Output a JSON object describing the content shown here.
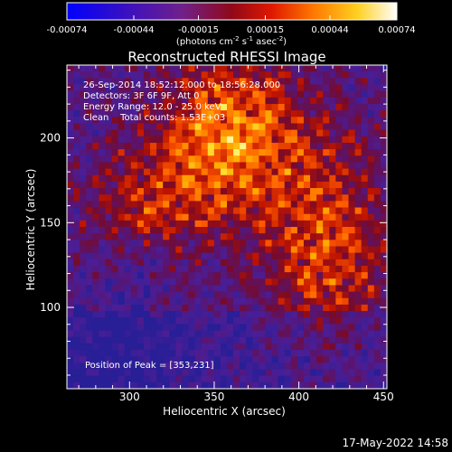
{
  "chart_data": {
    "type": "heatmap",
    "title": "Reconstructed RHESSI Image",
    "xlabel": "Heliocentric X (arcsec)",
    "ylabel": "Heliocentric Y (arcsec)",
    "xlim": [
      263,
      452
    ],
    "ylim": [
      52,
      243
    ],
    "x_ticks": [
      "300",
      "350",
      "400",
      "450"
    ],
    "x_tick_values": [
      300,
      350,
      400,
      450
    ],
    "y_ticks": [
      "100",
      "150",
      "200"
    ],
    "y_tick_values": [
      100,
      150,
      200
    ],
    "colorbar": {
      "range": [
        -0.00074,
        0.00074
      ],
      "tick_labels": [
        "-0.00074",
        "-0.00044",
        "-0.00015",
        "0.00015",
        "0.00044",
        "0.00074"
      ],
      "tick_values": [
        -0.00074,
        -0.00044,
        -0.00015,
        0.00015,
        0.00044,
        0.00074
      ],
      "units_text": "(photons cm",
      "units_sup1": "-2",
      "units_mid1": " s",
      "units_sup2": "-1",
      "units_mid2": " asec",
      "units_sup3": "-2",
      "units_end": ")"
    },
    "annotations": {
      "line1": "26-Sep-2014 18:52:12.000 to 18:56:28.000",
      "line2": "Detectors: 3F 6F 9F, Att 0",
      "line3": "Energy Range: 12.0 - 25.0 keV",
      "line4": "Clean    Total counts: 1.53E+03",
      "peak": "Position of Peak = [353,231]"
    },
    "peak_position": [
      353,
      231
    ],
    "timestamp": "17-May-2022 14:58",
    "colors": {
      "background": "#000000",
      "axes": "#ffffff",
      "colormap": [
        "#0000ff",
        "#5a1a8c",
        "#a01010",
        "#ff3000",
        "#ff9a00",
        "#ffff40",
        "#ffffff"
      ]
    }
  }
}
